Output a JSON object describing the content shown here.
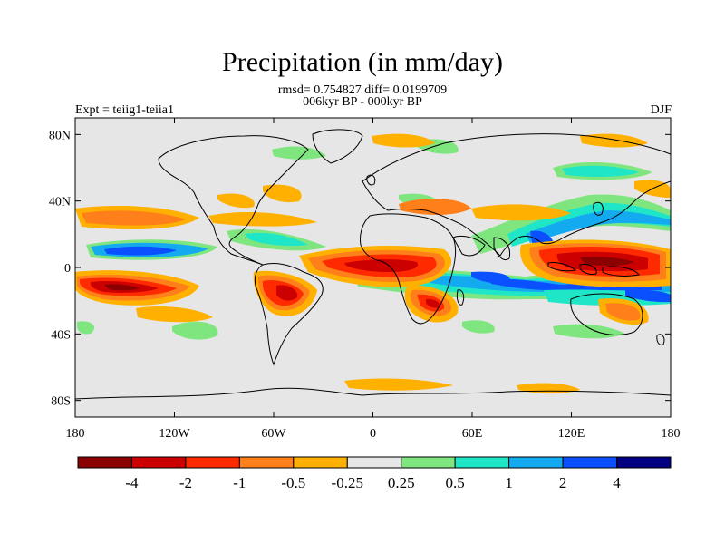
{
  "title": "Precipitation (in mm/day)",
  "stats": "rmsd= 0.754827 diff= 0.0199709",
  "period": "006kyr BP - 000kyr BP",
  "experiment": "Expt = teiig1-teiia1",
  "season": "DJF",
  "y_ticks": [
    "80N",
    "40N",
    "0",
    "40S",
    "80S"
  ],
  "x_ticks": [
    "180",
    "120W",
    "60W",
    "0",
    "60E",
    "120E",
    "180"
  ],
  "colorbar": {
    "labels": [
      "-4",
      "-2",
      "-1",
      "-0.5",
      "-0.25",
      "0.25",
      "0.5",
      "1",
      "2",
      "4"
    ],
    "colors": [
      "#8b0000",
      "#cc0000",
      "#ff2a00",
      "#ff7f1a",
      "#ffb000",
      "#e6e6e6",
      "#7fe67f",
      "#20e6c8",
      "#14aaf0",
      "#0a50ff",
      "#000080"
    ]
  },
  "map": {
    "background": "#e6e6e6",
    "lon_range": [
      -180,
      180
    ],
    "lat_range": [
      -90,
      90
    ]
  }
}
